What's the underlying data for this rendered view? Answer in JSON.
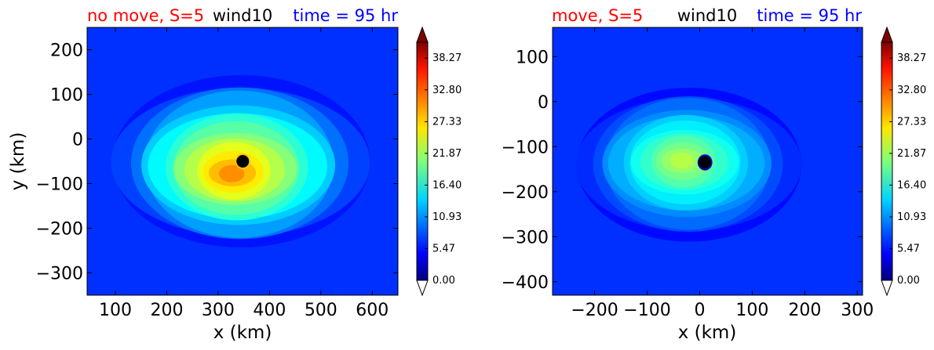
{
  "figure": {
    "colors": {
      "left_title": "#ff0000",
      "center_title": "#000000",
      "right_title": "#0000ff",
      "marker": "#000000"
    }
  },
  "chart_data": [
    {
      "type": "heatmap",
      "title_left": "no move, S=5",
      "title_center": "wind10",
      "title_right": "time = 95 hr",
      "xlabel": "x (km)",
      "ylabel": "y (km)",
      "xlim": [
        45,
        650
      ],
      "ylim": [
        -350,
        250
      ],
      "xticks": [
        100,
        200,
        300,
        400,
        500,
        600
      ],
      "xtick_labels": [
        "100",
        "200",
        "300",
        "400",
        "500",
        "600"
      ],
      "yticks": [
        200,
        100,
        0,
        -100,
        -200,
        -300
      ],
      "ytick_labels": [
        "200",
        "100",
        "0",
        "−100",
        "−200",
        "−300"
      ],
      "center": [
        345,
        -50
      ],
      "peak": [
        325,
        -80
      ],
      "peak_value": 32,
      "background_value": 4.5,
      "radius": 85,
      "stretch": [
        1.3,
        1.0
      ],
      "core_value": 28,
      "marker": [
        348,
        -50
      ],
      "colorbar": {
        "vmin": 0,
        "vmax": 41,
        "tick_values": [
          0,
          5.47,
          10.93,
          16.4,
          21.87,
          27.33,
          32.8,
          38.27
        ],
        "tick_labels": [
          "0.00",
          "5.47",
          "10.93",
          "16.40",
          "21.87",
          "27.33",
          "32.80",
          "38.27"
        ],
        "extend": "both"
      }
    },
    {
      "type": "heatmap",
      "title_left": "move, S=5",
      "title_center": "wind10",
      "title_right": "time = 95 hr",
      "xlabel": "x (km)",
      "ylabel": "",
      "xlim": [
        -280,
        310
      ],
      "ylim": [
        -430,
        165
      ],
      "xticks": [
        -200,
        -100,
        0,
        100,
        200,
        300
      ],
      "xtick_labels": [
        "−200",
        "−100",
        "0",
        "100",
        "200",
        "300"
      ],
      "yticks": [
        100,
        0,
        -100,
        -200,
        -300,
        -400
      ],
      "ytick_labels": [
        "100",
        "0",
        "−100",
        "−200",
        "−300",
        "−400"
      ],
      "center": [
        -20,
        -140
      ],
      "peak": [
        -35,
        -130
      ],
      "peak_value": 24,
      "background_value": 4.5,
      "radius": 75,
      "stretch": [
        1.25,
        1.0
      ],
      "core_value": 3,
      "marker": [
        10,
        -135
      ],
      "colorbar": {
        "vmin": 0,
        "vmax": 41,
        "tick_values": [
          0,
          5.47,
          10.93,
          16.4,
          21.87,
          27.33,
          32.8,
          38.27
        ],
        "tick_labels": [
          "0.00",
          "5.47",
          "10.93",
          "16.40",
          "21.87",
          "27.33",
          "32.80",
          "38.27"
        ],
        "extend": "both"
      }
    }
  ]
}
